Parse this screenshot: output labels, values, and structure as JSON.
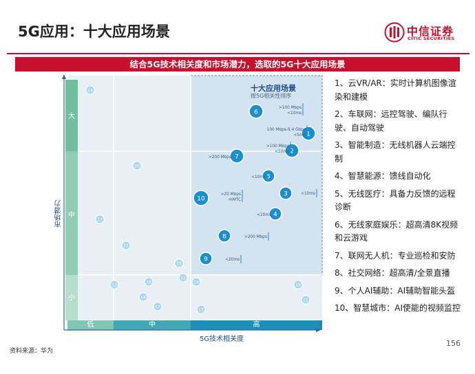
{
  "header": {
    "title": "5G应用：十大应用场景",
    "logo_cn": "中信证券",
    "logo_en": "CITIC SECURITIES"
  },
  "banner": "结合5G技术相关度和市场潜力，选取的5G十大应用场景",
  "diagram": {
    "highlight_title": "十大应用场景",
    "highlight_subtitle": "按5G相关性排序",
    "y_axis_title": "市场潜力",
    "y_levels": [
      "大",
      "中",
      "小"
    ],
    "x_axis_title": "5G技术相关度",
    "x_levels": [
      "低",
      "中",
      "高"
    ],
    "points": [
      {
        "id": "1",
        "label": "100 Mbps-9.4 Gbps <5ms"
      },
      {
        "id": "2",
        "label": ">100 Mbps <10ms"
      },
      {
        "id": "3",
        "label": "<10ms"
      },
      {
        "id": "4",
        "label": "<10ms"
      },
      {
        "id": "5",
        "label": "<10ms"
      },
      {
        "id": "6",
        "label": ">100 Mbps <10ms"
      },
      {
        "id": "7",
        "label": ">200 Mbps"
      },
      {
        "id": "8",
        "label": ">200 Mbps"
      },
      {
        "id": "9",
        "label": "<20ms"
      },
      {
        "id": "10",
        "label": ">20 Mbps mMTC"
      },
      {
        "id": "11",
        "label": ""
      },
      {
        "id": "12",
        "label": ""
      },
      {
        "id": "13",
        "label": ""
      },
      {
        "id": "14",
        "label": ""
      },
      {
        "id": "15",
        "label": ""
      },
      {
        "id": "16",
        "label": ""
      },
      {
        "id": "17",
        "label": ""
      },
      {
        "id": "18",
        "label": ""
      },
      {
        "id": "19",
        "label": ""
      },
      {
        "id": "20",
        "label": ""
      },
      {
        "id": "21",
        "label": ""
      },
      {
        "id": "22",
        "label": ""
      },
      {
        "id": "23",
        "label": ""
      },
      {
        "id": "24",
        "label": ""
      }
    ]
  },
  "list": [
    "1、云VR/AR：实时计算机图像渲染和建模",
    "2、车联网：远控驾驶、编队行驶、自动驾驶",
    "3、智能制造：无线机器人云端控制",
    "4、智慧能源：馈线自动化",
    "5、无线医疗：具备力反馈的远程诊断",
    "6、无线家庭娱乐：超高清8K视频和云游戏",
    "7、联网无人机：专业巡检和安防",
    "8、社交网络：超高清/全景直播",
    "9、个人AI辅助：AI辅助智能头盔",
    "10、智慧城市：AI使能的视频监控"
  ],
  "footer": {
    "source": "资料来源：华为",
    "page": "156"
  },
  "colors": {
    "brand_red": "#c8102e",
    "bubble_dark": "#1a8fd0",
    "bubble_light": "#a9d6e8",
    "axis_green": "#6dbf9e"
  }
}
